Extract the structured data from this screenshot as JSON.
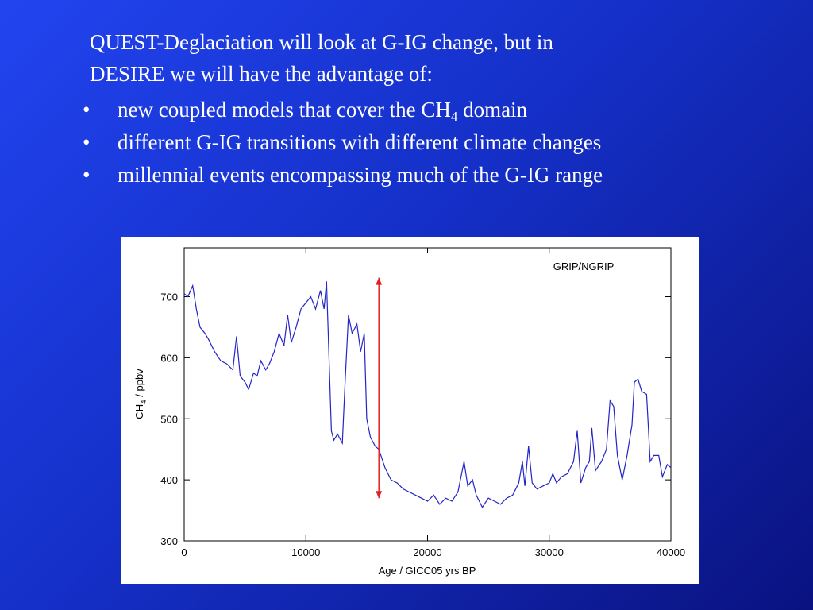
{
  "slide": {
    "heading": [
      "QUEST-Deglaciation will look at G-IG change, but in",
      "DESIRE we will have the advantage of:"
    ],
    "bullets": [
      {
        "text": "new coupled models that cover the CH",
        "sub": "4",
        "rest": " domain"
      },
      {
        "text": "different G-IG transitions with different climate changes"
      },
      {
        "text": "millennial events encompassing much of the G-IG range"
      }
    ]
  },
  "chart_data": {
    "type": "line",
    "annotation": "GRIP/NGRIP",
    "xlabel": "Age / GICC05 yrs BP",
    "ylabel": {
      "text": "CH",
      "sub": "4",
      "rest": " / ppbv"
    },
    "xlim": [
      0,
      40000
    ],
    "xticks": [
      0,
      10000,
      20000,
      30000,
      40000
    ],
    "ylim": [
      300,
      780
    ],
    "yticks": [
      300,
      400,
      500,
      600,
      700
    ],
    "range_arrow": {
      "x": 16000,
      "from": 370,
      "to": 731,
      "color": "#e02020"
    },
    "x": [
      0,
      300,
      700,
      1000,
      1300,
      1700,
      2000,
      2500,
      3000,
      3500,
      4000,
      4300,
      4600,
      5000,
      5300,
      5700,
      6000,
      6300,
      6700,
      7000,
      7400,
      7800,
      8200,
      8500,
      8800,
      9200,
      9600,
      10000,
      10400,
      10800,
      11200,
      11500,
      11700,
      11900,
      12100,
      12300,
      12600,
      13000,
      13200,
      13500,
      13800,
      14200,
      14500,
      14800,
      15000,
      15300,
      15700,
      16000,
      16500,
      17000,
      17500,
      18000,
      18500,
      19000,
      19500,
      20000,
      20500,
      21000,
      21500,
      22000,
      22500,
      23000,
      23300,
      23700,
      24000,
      24500,
      25000,
      25500,
      26000,
      26500,
      27000,
      27500,
      27800,
      28000,
      28300,
      28600,
      29000,
      29500,
      30000,
      30300,
      30600,
      31000,
      31500,
      32000,
      32300,
      32600,
      33000,
      33300,
      33500,
      33800,
      34300,
      34700,
      35000,
      35300,
      35600,
      36000,
      36400,
      36800,
      37000,
      37300,
      37600,
      38000,
      38300,
      38600,
      39000,
      39300,
      39700,
      40000
    ],
    "series": [
      {
        "name": "CH4",
        "color": "#2424c8",
        "values": [
          705,
          700,
          718,
          680,
          650,
          640,
          630,
          610,
          595,
          590,
          580,
          635,
          570,
          560,
          548,
          575,
          570,
          595,
          580,
          590,
          610,
          640,
          620,
          670,
          625,
          650,
          680,
          690,
          700,
          680,
          710,
          680,
          725,
          600,
          480,
          465,
          475,
          460,
          550,
          670,
          640,
          655,
          610,
          640,
          500,
          470,
          455,
          450,
          420,
          400,
          395,
          385,
          380,
          375,
          370,
          365,
          375,
          360,
          370,
          365,
          380,
          430,
          390,
          400,
          375,
          355,
          370,
          365,
          360,
          370,
          375,
          395,
          430,
          390,
          455,
          395,
          385,
          390,
          395,
          410,
          395,
          405,
          410,
          430,
          480,
          395,
          420,
          430,
          485,
          415,
          430,
          450,
          530,
          520,
          440,
          400,
          440,
          490,
          560,
          565,
          545,
          540,
          430,
          440,
          440,
          405,
          425,
          420
        ]
      }
    ]
  }
}
